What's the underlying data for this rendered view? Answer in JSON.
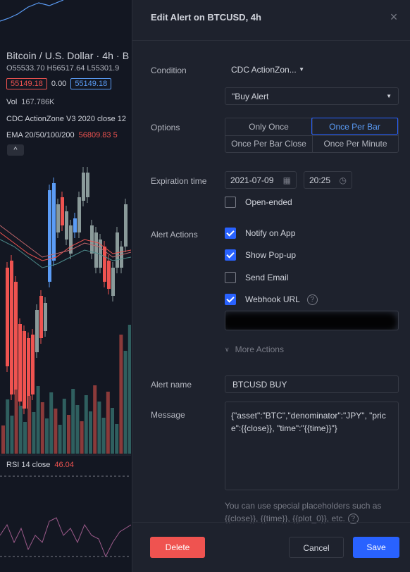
{
  "chart": {
    "title": "Bitcoin / U.S. Dollar · 4h · B",
    "ohlc": "O55533.70 H56517.64 L55301.9",
    "price_left": "55149.18",
    "price_mid": "0.00",
    "price_right": "55149.18",
    "vol_label": "Vol",
    "vol_value": "167.786K",
    "cdc_line": "CDC ActionZone V3 2020 close 12",
    "ema_label": "EMA 20/50/100/200",
    "ema_value": "56809.83 5",
    "collapse_icon": "^",
    "rsi_label": "RSI 14 close",
    "rsi_value": "46.04",
    "colors": {
      "up": "#5b9cf6",
      "down": "#ef5350",
      "neutral": "#8a9a9a"
    }
  },
  "dialog": {
    "title": "Edit Alert on BTCUSD, 4h",
    "close_icon": "×",
    "condition": {
      "label": "Condition",
      "indicator": "CDC ActionZon...",
      "alert": "\"Buy Alert"
    },
    "options": {
      "label": "Options",
      "items": [
        "Only Once",
        "Once Per Bar",
        "Once Per Bar Close",
        "Once Per Minute"
      ],
      "selected": "Once Per Bar"
    },
    "expiration": {
      "label": "Expiration time",
      "date": "2021-07-09",
      "time": "20:25",
      "open_ended_label": "Open-ended",
      "open_ended_checked": false
    },
    "alert_actions": {
      "label": "Alert Actions",
      "notify_label": "Notify on App",
      "popup_label": "Show Pop-up",
      "email_label": "Send Email",
      "webhook_label": "Webhook URL"
    },
    "more_actions": "More Actions",
    "alert_name": {
      "label": "Alert name",
      "value": "BTCUSD BUY"
    },
    "message": {
      "label": "Message",
      "value": "{\"asset\":\"BTC\",\"denominator\":\"JPY\", \"price\":{{close}}, \"time\":\"{{time}}\"}"
    },
    "hint": "You can use special placeholders such as {{close}}, {{time}}, {{plot_0}}, etc.",
    "buttons": {
      "delete": "Delete",
      "cancel": "Cancel",
      "save": "Save"
    },
    "colors": {
      "accent": "#2962ff",
      "danger": "#ef5350",
      "bg": "#1e222d"
    }
  }
}
